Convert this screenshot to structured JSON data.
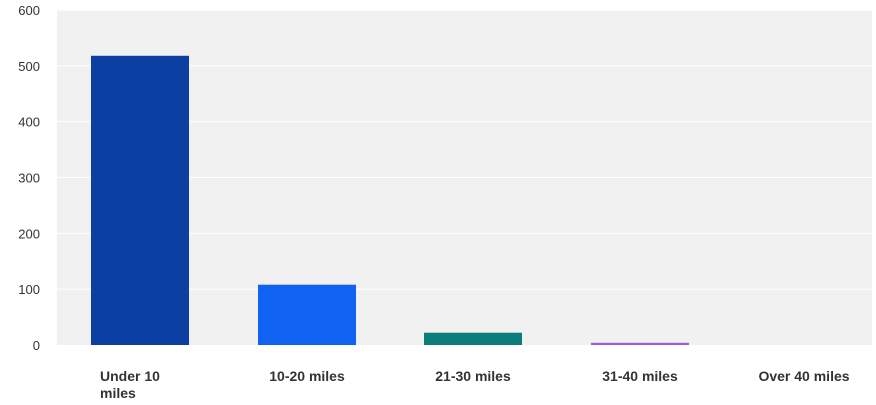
{
  "chart_data": {
    "type": "bar",
    "title": "",
    "xlabel": "",
    "ylabel": "",
    "categories": [
      "Under 10 miles",
      "10-20 miles",
      "21-30 miles",
      "31-40 miles",
      "Over 40 miles"
    ],
    "category_label_lines": [
      [
        "Under 10",
        "miles"
      ],
      [
        "10-20 miles"
      ],
      [
        "21-30 miles"
      ],
      [
        "31-40 miles"
      ],
      [
        "Over 40 miles"
      ]
    ],
    "values": [
      518,
      108,
      22,
      4,
      0
    ],
    "bar_colors": [
      "#0b3fa2",
      "#0f62f2",
      "#0b7d7a",
      "#a15de0",
      "#cccccc"
    ],
    "ylim": [
      0,
      600
    ],
    "yticks": [
      0,
      100,
      200,
      300,
      400,
      500,
      600
    ],
    "grid": true,
    "legend": "none",
    "plot_background": "#f1f1f1",
    "gridline_color": "#ffffff"
  }
}
